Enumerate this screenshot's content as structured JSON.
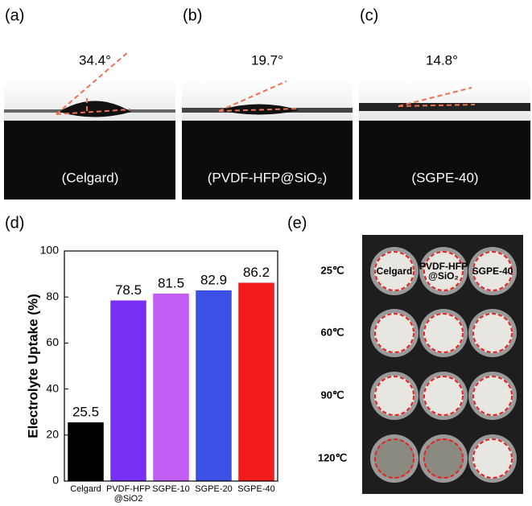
{
  "panels": [
    {
      "label": "(a)",
      "angle": "34.4°",
      "caption": "(Celgard)"
    },
    {
      "label": "(b)",
      "angle": "19.7°",
      "caption": "(PVDF-HFP@SiO₂)"
    },
    {
      "label": "(c)",
      "angle": "14.8°",
      "caption": "(SGPE-40)"
    }
  ],
  "chart_data": {
    "type": "bar",
    "panel_label": "(d)",
    "ylabel": "Electrolyte Uptake (%)",
    "categories": [
      "Celgard",
      "PVDF-HFP @SiO2",
      "SGPE-10",
      "SGPE-20",
      "SGPE-40"
    ],
    "values": [
      25.5,
      78.5,
      81.5,
      82.9,
      86.2
    ],
    "colors": [
      "#000000",
      "#7a2ff5",
      "#c25cf2",
      "#3c50e6",
      "#f21c1c"
    ],
    "ylim": [
      0,
      100
    ],
    "yticks": [
      0,
      20,
      40,
      60,
      80,
      100
    ],
    "grid": false
  },
  "photo_grid": {
    "panel_label": "(e)",
    "temperatures": [
      "25℃",
      "60℃",
      "90℃",
      "120℃"
    ],
    "samples": [
      "Celgard",
      "PVDF-HFP @SiO₂",
      "SGPE-40"
    ]
  }
}
